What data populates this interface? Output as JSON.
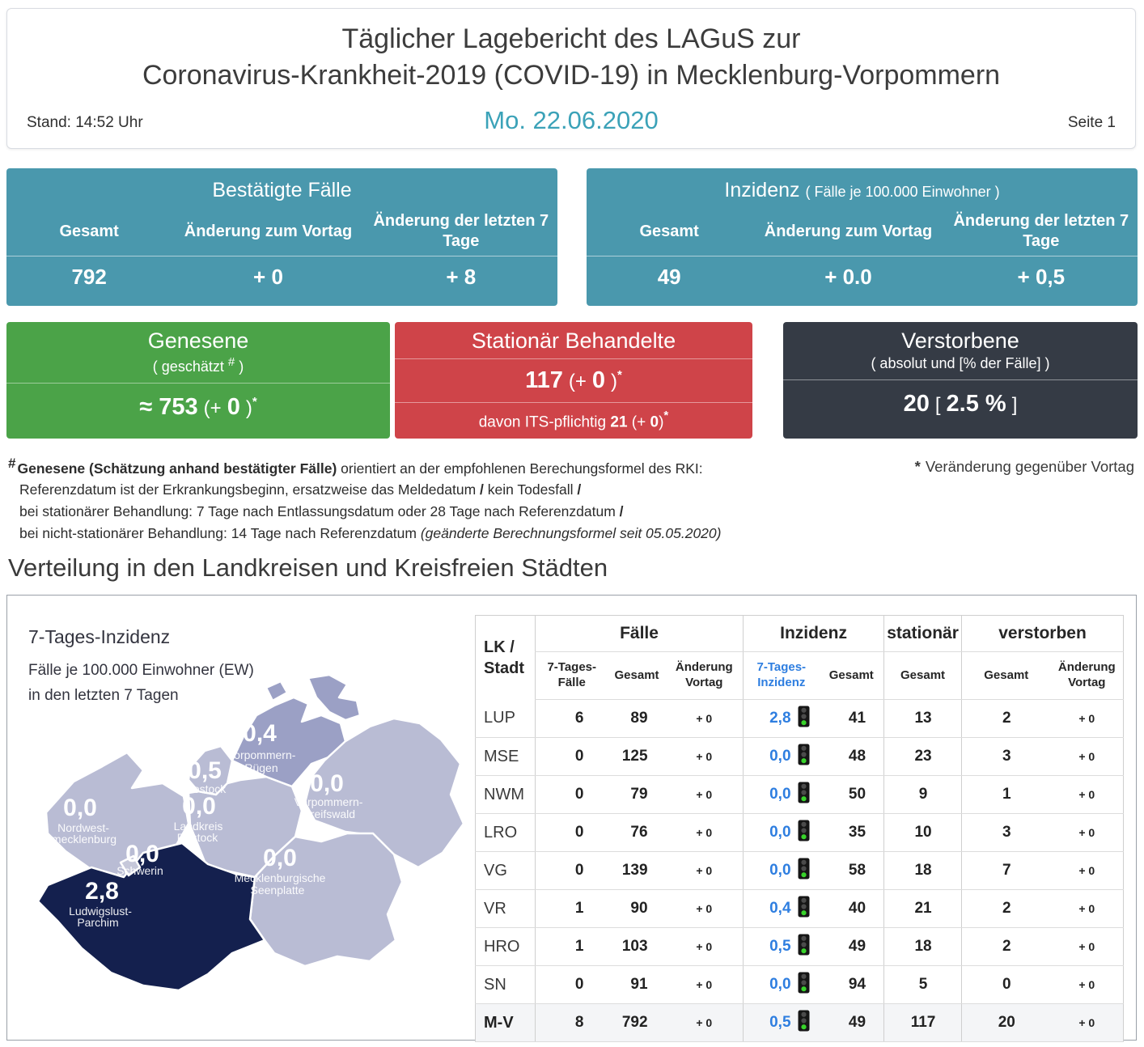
{
  "sym": {
    "star": "*",
    "hash": "#",
    "slash": "/"
  },
  "header": {
    "title_line1": "Täglicher Lagebericht des LAGuS zur",
    "title_line2": "Coronavirus-Krankheit-2019 (COVID-19) in Mecklenburg-Vorpommern",
    "stand": "Stand: 14:52 Uhr",
    "date": "Mo. 22.06.2020",
    "page": "Seite 1"
  },
  "colors": {
    "teal": "#4a98ad",
    "green": "#4ba348",
    "red": "#cf4449",
    "dark": "#353b45",
    "accent_date": "#3ba2b8",
    "table_blue": "#2e7ee0"
  },
  "cards": {
    "confirmed": {
      "title": "Bestätigte Fälle",
      "col_total": "Gesamt",
      "col_day": "Änderung zum Vortag",
      "col_week": "Änderung der letzten 7 Tage",
      "val_total": "792",
      "val_day": "+ 0",
      "val_week": "+ 8"
    },
    "incidence": {
      "title": "Inzidenz",
      "subtitle": "( Fälle je 100.000 Einwohner )",
      "col_total": "Gesamt",
      "col_day": "Änderung zum Vortag",
      "col_week": "Änderung der letzten 7 Tage",
      "val_total": "49",
      "val_day": "+ 0.0",
      "val_week": "+ 0,5"
    },
    "recovered": {
      "title": "Genesene",
      "subtitle_open": "( geschätzt ",
      "subtitle_close": " )",
      "value": "≈ 753",
      "change_open": "(+",
      "change_value": "0",
      "change_close": ")"
    },
    "hospitalized": {
      "title": "Stationär Behandelte",
      "value": "117",
      "change_open": "(+",
      "change_value": "0",
      "change_close": ")",
      "sub_label": "davon ITS-pflichtig",
      "sub_value": "21",
      "sub_change_open": "(+",
      "sub_change_value": "0",
      "sub_change_close": ")"
    },
    "deceased": {
      "title": "Verstorbene",
      "subtitle": "( absolut und [% der Fälle] )",
      "value": "20",
      "bracket_open": "[",
      "percent": "2.5 %",
      "bracket_close": "]"
    }
  },
  "footnotes": {
    "l1_bold": "Genesene (Schätzung anhand bestätigter Fälle)",
    "l1_rest": " orientiert an der empfohlenen Berechungsformel des RKI:",
    "l2_a": "Referenzdatum ist der Erkrankungsbeginn, ersatzweise das Meldedatum ",
    "l2_b": " kein Todesfall ",
    "l3_a": "bei stationärer Behandlung: 7 Tage nach Entlassungsdatum oder 28 Tage nach Referenzdatum ",
    "l4_a": "bei nicht-stationärer Behandlung: 14 Tage nach Referenzdatum ",
    "l4_italic": "(geänderte Berechnungsformel seit 05.05.2020)",
    "star_note": "Veränderung gegenüber Vortag"
  },
  "section_title": "Verteilung in den Landkreisen und Kreisfreien Städten",
  "map": {
    "legend_title": "7-Tages-Inzidenz",
    "legend_line2": "Fälle je 100.000 Einwohner (EW)",
    "legend_line3": "in den letzten 7 Tagen",
    "colors": {
      "light": "#b9bcd4",
      "medium": "#9ba0c5",
      "dark": "#14204e"
    },
    "regions": [
      {
        "code": "VR",
        "value": "0,4",
        "name_lines": [
          "Vorpommern-",
          "Rügen"
        ],
        "shade": "medium"
      },
      {
        "code": "HRO",
        "value": "0,5",
        "name_lines": [
          "Rostock"
        ],
        "shade": "light"
      },
      {
        "code": "NWM",
        "value": "0,0",
        "name_lines": [
          "Nordwest-",
          "mecklenburg"
        ],
        "shade": "light"
      },
      {
        "code": "LRO",
        "value": "0,0",
        "name_lines": [
          "Landkreis",
          "Rostock"
        ],
        "shade": "light"
      },
      {
        "code": "VG",
        "value": "0,0",
        "name_lines": [
          "Vorpommern-",
          "Greifswald"
        ],
        "shade": "light"
      },
      {
        "code": "SN",
        "value": "0,0",
        "name_lines": [
          "Schwerin"
        ],
        "shade": "dark"
      },
      {
        "code": "LUP",
        "value": "2,8",
        "name_lines": [
          "Ludwigslust-",
          "Parchim"
        ],
        "shade": "dark"
      },
      {
        "code": "MSE",
        "value": "0,0",
        "name_lines": [
          "Mecklenburgische",
          "Seenplatte"
        ],
        "shade": "light"
      }
    ]
  },
  "table": {
    "rowhead": "LK / Stadt",
    "groups": {
      "cases": "Fälle",
      "incidence": "Inzidenz",
      "hospital": "stationär",
      "deceased": "verstorben"
    },
    "subheaders": {
      "cases7": "7-Tages-Fälle",
      "total1": "Gesamt",
      "change1": "Änderung Vortag",
      "incidence7": "7-Tages-Inzidenz",
      "total2": "Gesamt",
      "total3": "Gesamt",
      "total4": "Gesamt",
      "change2": "Änderung Vortag"
    },
    "traffic_light": {
      "body": "#161616",
      "off": "#4b4b4b",
      "on": "#38d32b"
    },
    "rows": [
      {
        "code": "LUP",
        "cases7": "6",
        "cases_total": "89",
        "cases_change": "+ 0",
        "incidence7": "2,8",
        "incidence_total": "41",
        "hospital_total": "13",
        "deaths_total": "2",
        "deaths_change": "+ 0",
        "is_total": false
      },
      {
        "code": "MSE",
        "cases7": "0",
        "cases_total": "125",
        "cases_change": "+ 0",
        "incidence7": "0,0",
        "incidence_total": "48",
        "hospital_total": "23",
        "deaths_total": "3",
        "deaths_change": "+ 0",
        "is_total": false
      },
      {
        "code": "NWM",
        "cases7": "0",
        "cases_total": "79",
        "cases_change": "+ 0",
        "incidence7": "0,0",
        "incidence_total": "50",
        "hospital_total": "9",
        "deaths_total": "1",
        "deaths_change": "+ 0",
        "is_total": false
      },
      {
        "code": "LRO",
        "cases7": "0",
        "cases_total": "76",
        "cases_change": "+ 0",
        "incidence7": "0,0",
        "incidence_total": "35",
        "hospital_total": "10",
        "deaths_total": "3",
        "deaths_change": "+ 0",
        "is_total": false
      },
      {
        "code": "VG",
        "cases7": "0",
        "cases_total": "139",
        "cases_change": "+ 0",
        "incidence7": "0,0",
        "incidence_total": "58",
        "hospital_total": "18",
        "deaths_total": "7",
        "deaths_change": "+ 0",
        "is_total": false
      },
      {
        "code": "VR",
        "cases7": "1",
        "cases_total": "90",
        "cases_change": "+ 0",
        "incidence7": "0,4",
        "incidence_total": "40",
        "hospital_total": "21",
        "deaths_total": "2",
        "deaths_change": "+ 0",
        "is_total": false
      },
      {
        "code": "HRO",
        "cases7": "1",
        "cases_total": "103",
        "cases_change": "+ 0",
        "incidence7": "0,5",
        "incidence_total": "49",
        "hospital_total": "18",
        "deaths_total": "2",
        "deaths_change": "+ 0",
        "is_total": false
      },
      {
        "code": "SN",
        "cases7": "0",
        "cases_total": "91",
        "cases_change": "+ 0",
        "incidence7": "0,0",
        "incidence_total": "94",
        "hospital_total": "5",
        "deaths_total": "0",
        "deaths_change": "+ 0",
        "is_total": false
      },
      {
        "code": "M-V",
        "cases7": "8",
        "cases_total": "792",
        "cases_change": "+ 0",
        "incidence7": "0,5",
        "incidence_total": "49",
        "hospital_total": "117",
        "deaths_total": "20",
        "deaths_change": "+ 0",
        "is_total": true
      }
    ]
  }
}
